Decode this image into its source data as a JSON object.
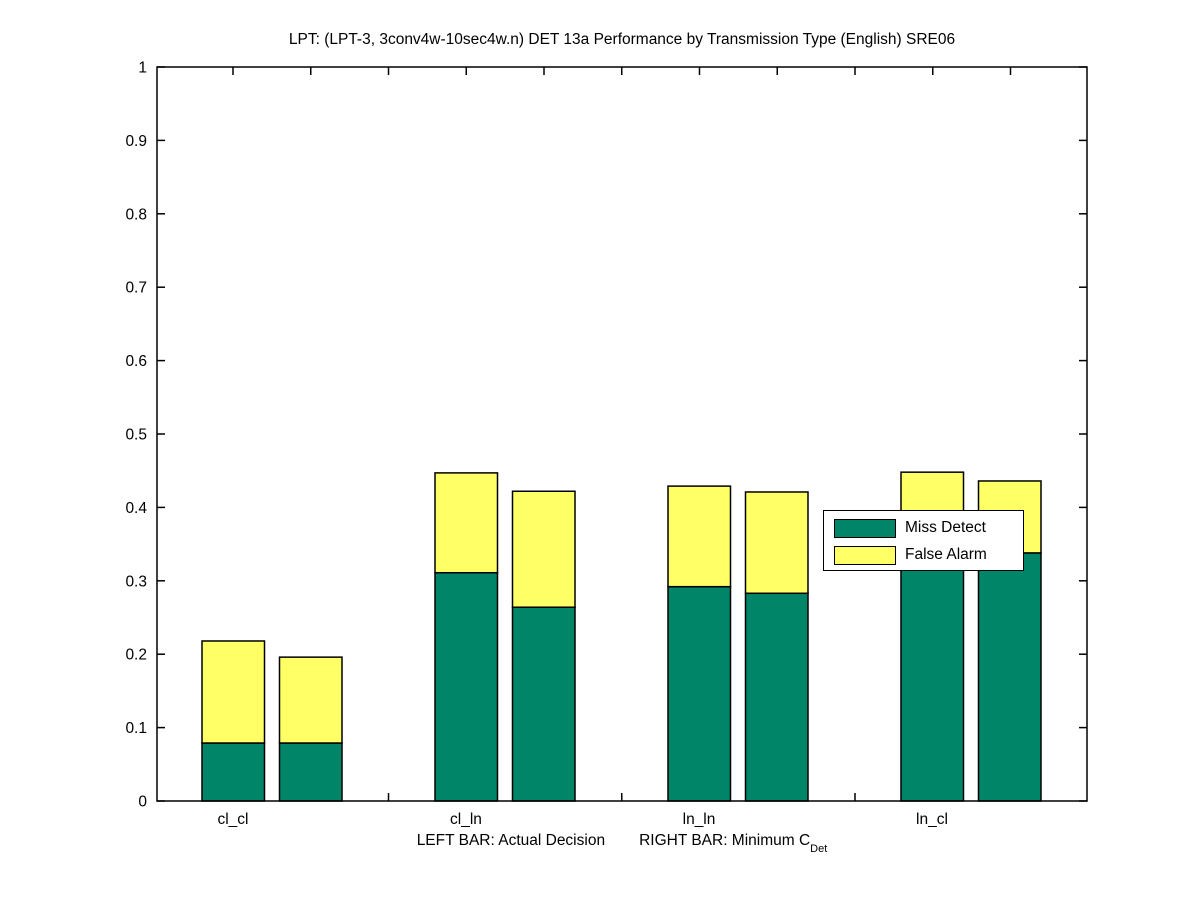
{
  "figure": {
    "background": "#ffffff"
  },
  "chart_data": {
    "type": "bar",
    "variant": "grouped-stacked",
    "title": "LPT: (LPT-3, 3conv4w-10sec4w.n) DET 13a Performance by Transmission Type (English) SRE06",
    "xlabel_left": "LEFT BAR: Actual Decision",
    "xlabel_right_main": "RIGHT BAR: Minimum C",
    "xlabel_right_sub": "Det",
    "categories": [
      "cl_cl",
      "cl_ln",
      "ln_ln",
      "ln_cl"
    ],
    "series": [
      {
        "name": "Actual Decision (left bar)",
        "miss_detect": [
          0.079,
          0.311,
          0.292,
          0.335
        ],
        "false_alarm": [
          0.139,
          0.136,
          0.137,
          0.113
        ]
      },
      {
        "name": "Minimum CDet (right bar)",
        "miss_detect": [
          0.079,
          0.264,
          0.283,
          0.338
        ],
        "false_alarm": [
          0.117,
          0.158,
          0.138,
          0.098
        ]
      }
    ],
    "stack_order": [
      "miss_detect",
      "false_alarm"
    ],
    "legend": {
      "position": "right-middle-overlapping-bars",
      "items": [
        {
          "label": "Miss Detect",
          "color": "#008568"
        },
        {
          "label": "False Alarm",
          "color": "#ffff66"
        }
      ]
    },
    "ylim": [
      0,
      1
    ],
    "ytick_values": [
      0,
      0.1,
      0.2,
      0.3,
      0.4,
      0.5,
      0.6,
      0.7,
      0.8,
      0.9,
      1
    ],
    "ytick_labels": [
      "0",
      "0.1",
      "0.2",
      "0.3",
      "0.4",
      "0.5",
      "0.6",
      "0.7",
      "0.8",
      "0.9",
      "1"
    ],
    "grid": false,
    "box": true,
    "colors": {
      "miss_detect": "#008568",
      "false_alarm": "#ffff66",
      "axis": "#000000",
      "bar_edge": "#000000",
      "background": "#ffffff"
    }
  }
}
